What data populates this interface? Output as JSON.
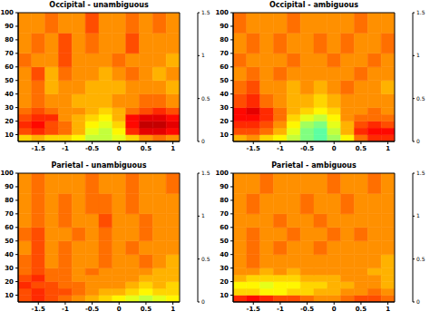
{
  "chart_data": [
    {
      "type": "heatmap",
      "title": "Occipital - unambiguous",
      "xlim": [
        -1.875,
        1.125
      ],
      "xticks": [
        -1.5,
        -1,
        -0.5,
        0,
        0.5,
        1
      ],
      "ylim": [
        5,
        100
      ],
      "yticks": [
        10,
        20,
        30,
        40,
        50,
        60,
        70,
        80,
        90,
        100
      ],
      "x_edges": [
        -1.875,
        -1.625,
        -1.375,
        -1.125,
        -0.875,
        -0.625,
        -0.375,
        -0.125,
        0.125,
        0.375,
        0.625,
        0.875,
        1.125
      ],
      "y_edges": [
        5,
        10,
        15,
        20,
        25,
        30,
        40,
        50,
        60,
        70,
        85,
        100
      ],
      "colorbar_range": [
        0,
        1.5
      ],
      "colorbar_ticks": [
        0,
        0.5,
        1,
        1.5
      ],
      "cells": [
        [
          1.0,
          1.05,
          1.0,
          1.0,
          0.95,
          0.85,
          0.85,
          0.9,
          1.0,
          1.1,
          1.15,
          1.1
        ],
        [
          1.2,
          1.25,
          1.2,
          1.15,
          1.05,
          0.9,
          0.85,
          0.95,
          1.25,
          1.35,
          1.35,
          1.3
        ],
        [
          1.25,
          1.3,
          1.2,
          1.15,
          1.05,
          0.95,
          0.9,
          1.0,
          1.3,
          1.4,
          1.4,
          1.35
        ],
        [
          1.2,
          1.25,
          1.25,
          1.1,
          1.05,
          1.0,
          0.95,
          1.05,
          1.3,
          1.35,
          1.35,
          1.3
        ],
        [
          1.15,
          1.2,
          1.15,
          1.1,
          1.1,
          1.05,
          1.0,
          1.05,
          1.15,
          1.2,
          1.25,
          1.2
        ],
        [
          1.1,
          1.15,
          1.1,
          1.1,
          1.05,
          1.05,
          1.05,
          1.1,
          1.1,
          1.15,
          1.15,
          1.1
        ],
        [
          1.1,
          1.15,
          1.05,
          1.1,
          1.1,
          1.05,
          1.05,
          1.05,
          1.1,
          1.1,
          1.1,
          1.05
        ],
        [
          1.1,
          1.2,
          1.05,
          1.15,
          1.1,
          1.1,
          1.05,
          1.1,
          1.15,
          1.1,
          1.05,
          1.1
        ],
        [
          1.15,
          1.1,
          1.1,
          1.2,
          1.1,
          1.1,
          1.1,
          1.15,
          1.1,
          1.1,
          1.1,
          1.05
        ],
        [
          1.1,
          1.15,
          1.1,
          1.2,
          1.1,
          1.15,
          1.1,
          1.1,
          1.2,
          1.1,
          1.1,
          1.1
        ],
        [
          1.1,
          1.1,
          1.15,
          1.1,
          1.1,
          1.2,
          1.1,
          1.1,
          1.15,
          1.1,
          1.15,
          1.1
        ]
      ]
    },
    {
      "type": "heatmap",
      "title": "Occipital - ambiguous",
      "xlim": [
        -1.875,
        1.125
      ],
      "xticks": [
        -1.5,
        -1,
        -0.5,
        0,
        0.5,
        1
      ],
      "ylim": [
        5,
        100
      ],
      "yticks": [
        10,
        20,
        30,
        40,
        50,
        60,
        70,
        80,
        90,
        100
      ],
      "x_edges": [
        -1.875,
        -1.625,
        -1.375,
        -1.125,
        -0.875,
        -0.625,
        -0.375,
        -0.125,
        0.125,
        0.375,
        0.625,
        0.875,
        1.125
      ],
      "y_edges": [
        5,
        10,
        15,
        20,
        25,
        30,
        40,
        50,
        60,
        70,
        85,
        100
      ],
      "colorbar_range": [
        0,
        1.5
      ],
      "colorbar_ticks": [
        0,
        0.5,
        1,
        1.5
      ],
      "cells": [
        [
          1.05,
          1.1,
          1.0,
          0.95,
          0.85,
          0.75,
          0.7,
          0.8,
          0.95,
          1.15,
          1.25,
          1.25
        ],
        [
          1.2,
          1.2,
          1.15,
          1.05,
          0.9,
          0.75,
          0.7,
          0.85,
          1.05,
          1.25,
          1.3,
          1.3
        ],
        [
          1.25,
          1.25,
          1.2,
          1.1,
          0.95,
          0.8,
          0.75,
          0.9,
          1.05,
          1.2,
          1.25,
          1.2
        ],
        [
          1.3,
          1.3,
          1.25,
          1.15,
          1.0,
          0.9,
          0.85,
          0.95,
          1.1,
          1.15,
          1.15,
          1.15
        ],
        [
          1.3,
          1.35,
          1.25,
          1.15,
          1.05,
          1.0,
          0.95,
          1.0,
          1.1,
          1.1,
          1.15,
          1.1
        ],
        [
          1.2,
          1.25,
          1.15,
          1.1,
          1.05,
          1.05,
          1.0,
          1.05,
          1.1,
          1.1,
          1.1,
          1.1
        ],
        [
          1.15,
          1.2,
          1.1,
          1.1,
          1.05,
          1.1,
          1.05,
          1.1,
          1.15,
          1.1,
          1.1,
          1.05
        ],
        [
          1.1,
          1.15,
          1.1,
          1.15,
          1.1,
          1.1,
          1.1,
          1.1,
          1.1,
          1.15,
          1.1,
          1.1
        ],
        [
          1.15,
          1.1,
          1.1,
          1.1,
          1.15,
          1.1,
          1.1,
          1.15,
          1.1,
          1.1,
          1.15,
          1.1
        ],
        [
          1.1,
          1.15,
          1.1,
          1.15,
          1.1,
          1.1,
          1.15,
          1.1,
          1.15,
          1.1,
          1.1,
          1.15
        ],
        [
          1.15,
          1.1,
          1.1,
          1.1,
          1.15,
          1.1,
          1.1,
          1.1,
          1.1,
          1.15,
          1.1,
          1.1
        ]
      ]
    },
    {
      "type": "heatmap",
      "title": "Parietal - unambiguous",
      "xlim": [
        -1.875,
        1.125
      ],
      "xticks": [
        -1.5,
        -1,
        -0.5,
        0,
        0.5,
        1
      ],
      "ylim": [
        5,
        100
      ],
      "yticks": [
        10,
        20,
        30,
        40,
        50,
        60,
        70,
        80,
        90,
        100
      ],
      "x_edges": [
        -1.875,
        -1.625,
        -1.375,
        -1.125,
        -0.875,
        -0.625,
        -0.375,
        -0.125,
        0.125,
        0.375,
        0.625,
        0.875,
        1.125
      ],
      "y_edges": [
        5,
        10,
        15,
        20,
        25,
        30,
        40,
        50,
        60,
        70,
        85,
        100
      ],
      "colorbar_range": [
        0,
        1.5
      ],
      "colorbar_ticks": [
        0,
        0.5,
        1,
        1.5
      ],
      "cells": [
        [
          1.2,
          1.25,
          1.2,
          1.15,
          1.1,
          1.05,
          1.0,
          0.95,
          0.9,
          0.85,
          0.9,
          0.95
        ],
        [
          1.2,
          1.25,
          1.2,
          1.2,
          1.15,
          1.1,
          1.05,
          1.05,
          1.0,
          0.95,
          1.0,
          1.0
        ],
        [
          1.25,
          1.2,
          1.2,
          1.15,
          1.15,
          1.1,
          1.1,
          1.1,
          1.05,
          1.0,
          1.05,
          1.0
        ],
        [
          1.2,
          1.25,
          1.15,
          1.15,
          1.1,
          1.1,
          1.1,
          1.1,
          1.1,
          1.05,
          1.05,
          1.05
        ],
        [
          1.15,
          1.2,
          1.15,
          1.15,
          1.1,
          1.15,
          1.1,
          1.1,
          1.1,
          1.1,
          1.05,
          1.05
        ],
        [
          1.15,
          1.2,
          1.1,
          1.15,
          1.1,
          1.1,
          1.15,
          1.1,
          1.1,
          1.15,
          1.1,
          1.05
        ],
        [
          1.1,
          1.2,
          1.1,
          1.15,
          1.1,
          1.1,
          1.15,
          1.1,
          1.15,
          1.1,
          1.1,
          1.1
        ],
        [
          1.15,
          1.2,
          1.1,
          1.1,
          1.15,
          1.1,
          1.15,
          1.1,
          1.1,
          1.15,
          1.1,
          1.1
        ],
        [
          1.1,
          1.15,
          1.1,
          1.15,
          1.1,
          1.1,
          1.2,
          1.1,
          1.1,
          1.15,
          1.1,
          1.1
        ],
        [
          1.1,
          1.15,
          1.1,
          1.15,
          1.1,
          1.15,
          1.15,
          1.1,
          1.15,
          1.1,
          1.1,
          1.1
        ],
        [
          1.1,
          1.15,
          1.1,
          1.1,
          1.1,
          1.15,
          1.1,
          1.1,
          1.15,
          1.1,
          1.1,
          1.15
        ]
      ]
    },
    {
      "type": "heatmap",
      "title": "Parietal - ambiguous",
      "xlim": [
        -1.875,
        1.125
      ],
      "xticks": [
        -1.5,
        -1,
        -0.5,
        0,
        0.5,
        1
      ],
      "ylim": [
        5,
        100
      ],
      "yticks": [
        10,
        20,
        30,
        40,
        50,
        60,
        70,
        80,
        90,
        100
      ],
      "x_edges": [
        -1.875,
        -1.625,
        -1.375,
        -1.125,
        -0.875,
        -0.625,
        -0.375,
        -0.125,
        0.125,
        0.375,
        0.625,
        0.875,
        1.125
      ],
      "y_edges": [
        5,
        10,
        15,
        20,
        25,
        30,
        40,
        50,
        60,
        70,
        85,
        100
      ],
      "colorbar_range": [
        0,
        1.5
      ],
      "colorbar_ticks": [
        0,
        0.5,
        1,
        1.5
      ],
      "cells": [
        [
          1.25,
          1.3,
          1.25,
          1.2,
          1.2,
          1.15,
          1.1,
          1.1,
          1.15,
          1.2,
          1.2,
          1.15
        ],
        [
          1.0,
          1.0,
          0.95,
          0.95,
          1.0,
          1.0,
          1.05,
          1.05,
          1.1,
          1.1,
          1.15,
          1.1
        ],
        [
          0.95,
          0.95,
          0.9,
          0.95,
          0.95,
          1.0,
          1.0,
          1.05,
          1.05,
          1.1,
          1.1,
          1.05
        ],
        [
          1.05,
          1.0,
          1.0,
          1.0,
          1.0,
          1.05,
          1.05,
          1.05,
          1.1,
          1.1,
          1.1,
          1.05
        ],
        [
          1.1,
          1.1,
          1.05,
          1.1,
          1.05,
          1.1,
          1.1,
          1.1,
          1.1,
          1.1,
          1.05,
          1.05
        ],
        [
          1.1,
          1.15,
          1.1,
          1.1,
          1.1,
          1.1,
          1.1,
          1.1,
          1.1,
          1.1,
          1.1,
          1.05
        ],
        [
          1.1,
          1.15,
          1.1,
          1.15,
          1.1,
          1.1,
          1.15,
          1.1,
          1.1,
          1.1,
          1.1,
          1.1
        ],
        [
          1.1,
          1.15,
          1.1,
          1.1,
          1.15,
          1.1,
          1.1,
          1.15,
          1.1,
          1.15,
          1.1,
          1.1
        ],
        [
          1.1,
          1.1,
          1.1,
          1.15,
          1.1,
          1.1,
          1.15,
          1.1,
          1.1,
          1.1,
          1.1,
          1.1
        ],
        [
          1.1,
          1.15,
          1.1,
          1.1,
          1.1,
          1.15,
          1.1,
          1.1,
          1.15,
          1.1,
          1.1,
          1.1
        ],
        [
          1.1,
          1.1,
          1.15,
          1.1,
          1.1,
          1.1,
          1.1,
          1.15,
          1.1,
          1.1,
          1.15,
          1.1
        ]
      ]
    }
  ]
}
